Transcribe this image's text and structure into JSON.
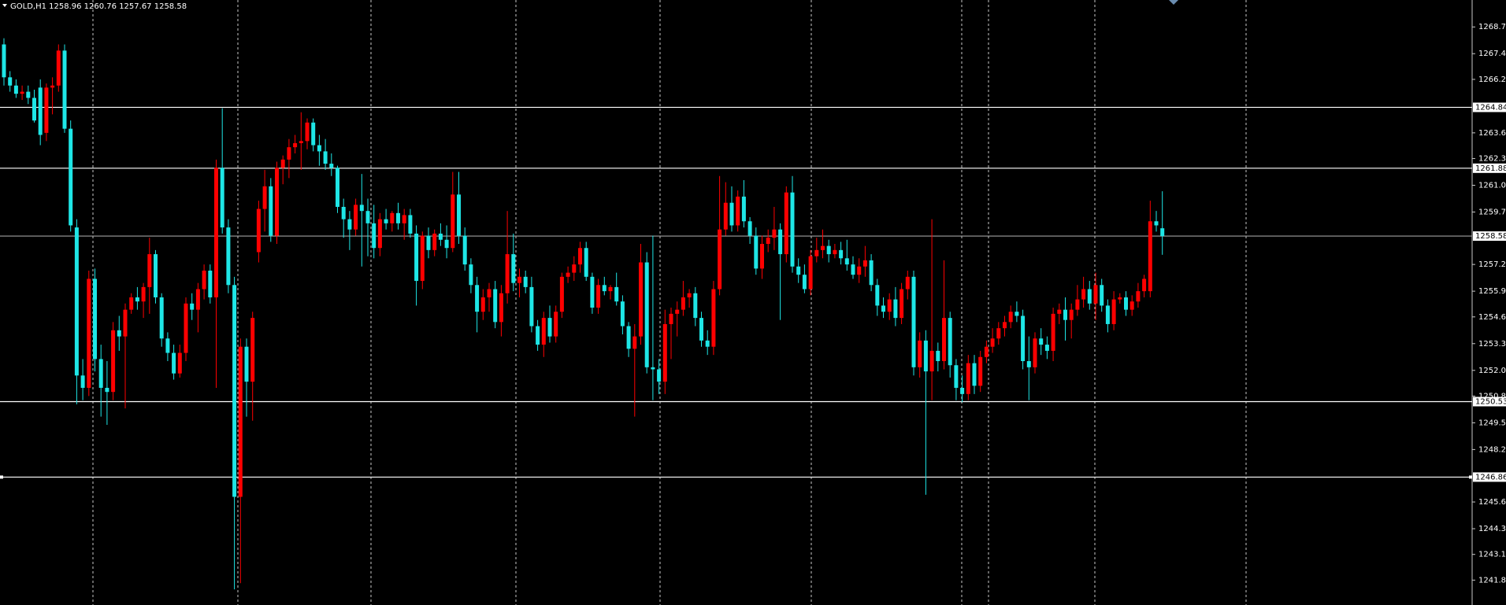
{
  "chart_data": {
    "type": "candlestick",
    "title": "GOLD,H1  1258.96 1260.76 1257.67 1258.58",
    "up_color": "#ff0000",
    "down_color": "#1ee6e6",
    "level_color": "#ffffff",
    "bid_color": "#a0a0a0",
    "ylim": [
      1240.64,
      1270.06
    ],
    "yticks": [
      1268.75,
      1267.45,
      {
        "value": 1266.2,
        "label": "1266.20"
      },
      {
        "value": 1263.6,
        "label": "1263.60"
      },
      1262.35,
      1261.05,
      1259.75,
      {
        "value": 1257.2,
        "label": "1257.20"
      },
      {
        "value": 1255.9,
        "label": "1255.90"
      },
      1254.65,
      1253.35,
      1252.05,
      {
        "value": 1250.8,
        "label": "1250.80"
      },
      {
        "value": 1249.5,
        "label": "1249.50"
      },
      {
        "value": 1248.2,
        "label": "1248.20"
      },
      1245.65,
      1244.35,
      {
        "value": 1243.1,
        "label": "1243.10"
      },
      1241.85
    ],
    "levels": [
      1264.84,
      1261.88,
      1250.53,
      1246.86
    ],
    "bid": 1258.58,
    "candles": [
      [
        1267.9,
        1268.2,
        1265.9,
        1266.3
      ],
      [
        1266.3,
        1266.6,
        1265.6,
        1265.9
      ],
      [
        1265.9,
        1266.2,
        1265.3,
        1265.5
      ],
      [
        1265.5,
        1265.9,
        1265.2,
        1265.6
      ],
      [
        1265.6,
        1265.9,
        1265.0,
        1265.3
      ],
      [
        1265.3,
        1265.7,
        1264.1,
        1264.2
      ],
      [
        1265.8,
        1266.2,
        1263.0,
        1263.5
      ],
      [
        1263.6,
        1266.0,
        1263.2,
        1265.8
      ],
      [
        1265.8,
        1266.3,
        1264.5,
        1265.9
      ],
      [
        1265.9,
        1267.9,
        1265.6,
        1267.6
      ],
      [
        1267.6,
        1267.9,
        1263.6,
        1263.8
      ],
      [
        1263.8,
        1264.2,
        1258.8,
        1259.1
      ],
      [
        1259.0,
        1259.4,
        1250.4,
        1251.8
      ],
      [
        1251.8,
        1252.6,
        1250.6,
        1251.2
      ],
      [
        1251.2,
        1256.9,
        1250.8,
        1256.5
      ],
      [
        1256.5,
        1257.0,
        1252.0,
        1252.6
      ],
      [
        1252.6,
        1253.3,
        1249.8,
        1251.2
      ],
      [
        1251.2,
        1252.5,
        1249.4,
        1251.0
      ],
      [
        1251.0,
        1254.4,
        1250.6,
        1254.0
      ],
      [
        1254.0,
        1254.7,
        1253.0,
        1253.7
      ],
      [
        1253.7,
        1255.3,
        1250.2,
        1255.0
      ],
      [
        1255.0,
        1255.8,
        1254.8,
        1255.6
      ],
      [
        1255.6,
        1256.1,
        1255.0,
        1255.4
      ],
      [
        1255.4,
        1256.3,
        1254.6,
        1256.1
      ],
      [
        1256.1,
        1258.5,
        1254.8,
        1257.7
      ],
      [
        1257.7,
        1257.9,
        1255.3,
        1255.6
      ],
      [
        1255.6,
        1255.8,
        1253.2,
        1253.6
      ],
      [
        1253.6,
        1253.9,
        1252.5,
        1252.9
      ],
      [
        1252.9,
        1253.3,
        1251.6,
        1251.9
      ],
      [
        1251.9,
        1253.3,
        1251.7,
        1252.9
      ],
      [
        1252.9,
        1255.6,
        1252.5,
        1255.3
      ],
      [
        1255.3,
        1255.8,
        1254.5,
        1255.0
      ],
      [
        1255.0,
        1256.3,
        1253.9,
        1256.0
      ],
      [
        1256.0,
        1257.2,
        1255.5,
        1256.9
      ],
      [
        1256.9,
        1257.2,
        1255.3,
        1255.6
      ],
      [
        1255.6,
        1262.3,
        1251.2,
        1261.9
      ],
      [
        1261.9,
        1264.8,
        1258.7,
        1259.0
      ],
      [
        1259.0,
        1259.4,
        1255.8,
        1256.2
      ],
      [
        1256.2,
        1256.6,
        1241.4,
        1245.9
      ],
      [
        1245.9,
        1253.6,
        1241.7,
        1253.2
      ],
      [
        1253.2,
        1253.6,
        1249.8,
        1251.5
      ],
      [
        1251.5,
        1254.9,
        1249.6,
        1254.6
      ],
      [
        1257.8,
        1260.3,
        1257.3,
        1259.9
      ],
      [
        1259.9,
        1261.8,
        1258.8,
        1261.0
      ],
      [
        1261.0,
        1261.4,
        1258.3,
        1258.6
      ],
      [
        1258.6,
        1262.2,
        1258.2,
        1261.9
      ],
      [
        1261.9,
        1262.5,
        1261.1,
        1262.3
      ],
      [
        1262.3,
        1263.3,
        1261.4,
        1262.9
      ],
      [
        1262.9,
        1263.5,
        1262.6,
        1263.1
      ],
      [
        1263.1,
        1264.6,
        1261.8,
        1263.2
      ],
      [
        1263.2,
        1264.3,
        1262.8,
        1264.1
      ],
      [
        1264.1,
        1264.3,
        1262.7,
        1263.0
      ],
      [
        1263.0,
        1263.5,
        1262.0,
        1262.7
      ],
      [
        1262.7,
        1263.3,
        1261.8,
        1262.1
      ],
      [
        1262.1,
        1262.6,
        1261.5,
        1261.9
      ],
      [
        1261.9,
        1262.0,
        1259.7,
        1260.0
      ],
      [
        1260.0,
        1260.4,
        1258.5,
        1259.4
      ],
      [
        1259.4,
        1259.8,
        1257.9,
        1258.9
      ],
      [
        1258.9,
        1260.4,
        1258.6,
        1260.1
      ],
      [
        1260.1,
        1261.6,
        1257.1,
        1259.8
      ],
      [
        1259.8,
        1260.4,
        1257.6,
        1259.2
      ],
      [
        1259.2,
        1260.1,
        1257.5,
        1258.0
      ],
      [
        1258.0,
        1259.7,
        1257.6,
        1259.4
      ],
      [
        1259.4,
        1259.9,
        1258.9,
        1259.2
      ],
      [
        1259.2,
        1259.8,
        1258.8,
        1259.7
      ],
      [
        1259.7,
        1260.2,
        1258.9,
        1259.2
      ],
      [
        1259.2,
        1259.9,
        1258.4,
        1259.6
      ],
      [
        1259.6,
        1259.9,
        1258.5,
        1258.7
      ],
      [
        1258.7,
        1259.1,
        1255.2,
        1256.4
      ],
      [
        1256.4,
        1258.8,
        1256.0,
        1258.6
      ],
      [
        1258.6,
        1259.0,
        1257.5,
        1257.9
      ],
      [
        1257.9,
        1258.9,
        1257.6,
        1258.7
      ],
      [
        1258.7,
        1259.2,
        1258.1,
        1258.4
      ],
      [
        1258.4,
        1259.1,
        1257.5,
        1258.0
      ],
      [
        1258.0,
        1261.7,
        1257.8,
        1260.6
      ],
      [
        1260.6,
        1261.7,
        1258.2,
        1258.6
      ],
      [
        1258.6,
        1259.0,
        1256.9,
        1257.2
      ],
      [
        1257.2,
        1257.5,
        1255.8,
        1256.2
      ],
      [
        1256.2,
        1256.6,
        1253.9,
        1254.9
      ],
      [
        1254.9,
        1256.0,
        1254.5,
        1255.6
      ],
      [
        1255.6,
        1256.3,
        1254.9,
        1256.0
      ],
      [
        1256.0,
        1256.4,
        1254.1,
        1254.4
      ],
      [
        1254.4,
        1256.2,
        1253.7,
        1255.8
      ],
      [
        1255.8,
        1259.8,
        1255.3,
        1257.7
      ],
      [
        1257.7,
        1258.7,
        1255.9,
        1256.3
      ],
      [
        1256.3,
        1257.0,
        1255.6,
        1256.6
      ],
      [
        1256.6,
        1256.9,
        1255.8,
        1256.1
      ],
      [
        1256.1,
        1256.6,
        1253.9,
        1254.2
      ],
      [
        1254.2,
        1254.5,
        1253.0,
        1253.3
      ],
      [
        1253.3,
        1254.9,
        1252.7,
        1254.6
      ],
      [
        1254.6,
        1255.2,
        1253.4,
        1253.7
      ],
      [
        1253.7,
        1255.2,
        1253.4,
        1254.9
      ],
      [
        1254.9,
        1256.8,
        1254.6,
        1256.6
      ],
      [
        1256.6,
        1257.1,
        1256.3,
        1256.8
      ],
      [
        1256.8,
        1257.6,
        1256.4,
        1257.2
      ],
      [
        1257.2,
        1258.3,
        1256.8,
        1258.0
      ],
      [
        1258.0,
        1258.3,
        1256.4,
        1256.6
      ],
      [
        1256.6,
        1256.8,
        1254.8,
        1255.1
      ],
      [
        1255.1,
        1256.5,
        1254.8,
        1256.2
      ],
      [
        1256.2,
        1256.6,
        1255.7,
        1255.9
      ],
      [
        1255.9,
        1256.2,
        1255.5,
        1256.1
      ],
      [
        1256.1,
        1256.8,
        1255.2,
        1255.4
      ],
      [
        1255.4,
        1255.7,
        1253.8,
        1254.2
      ],
      [
        1254.2,
        1254.4,
        1252.7,
        1253.1
      ],
      [
        1253.1,
        1254.3,
        1249.8,
        1253.7
      ],
      [
        1253.7,
        1258.2,
        1253.3,
        1257.3
      ],
      [
        1257.3,
        1257.8,
        1251.9,
        1252.2
      ],
      [
        1252.2,
        1258.6,
        1250.6,
        1252.1
      ],
      [
        1252.1,
        1252.6,
        1250.9,
        1251.5
      ],
      [
        1251.5,
        1255.0,
        1250.9,
        1254.3
      ],
      [
        1254.3,
        1255.1,
        1252.6,
        1254.8
      ],
      [
        1254.8,
        1255.4,
        1253.7,
        1255.0
      ],
      [
        1255.0,
        1256.4,
        1254.7,
        1255.6
      ],
      [
        1255.6,
        1256.0,
        1255.1,
        1255.8
      ],
      [
        1255.8,
        1256.1,
        1254.2,
        1254.6
      ],
      [
        1254.6,
        1254.9,
        1253.2,
        1253.5
      ],
      [
        1253.5,
        1254.0,
        1252.8,
        1253.2
      ],
      [
        1253.2,
        1256.4,
        1252.8,
        1256.0
      ],
      [
        1256.0,
        1261.5,
        1255.7,
        1258.9
      ],
      [
        1258.9,
        1261.2,
        1258.6,
        1260.2
      ],
      [
        1260.2,
        1261.0,
        1258.8,
        1259.1
      ],
      [
        1259.1,
        1260.8,
        1258.8,
        1260.5
      ],
      [
        1260.5,
        1261.3,
        1259.0,
        1259.3
      ],
      [
        1259.3,
        1259.5,
        1258.2,
        1258.6
      ],
      [
        1258.6,
        1259.0,
        1256.7,
        1257.0
      ],
      [
        1257.0,
        1258.6,
        1256.5,
        1258.2
      ],
      [
        1258.2,
        1258.9,
        1257.8,
        1258.5
      ],
      [
        1258.5,
        1260.0,
        1257.9,
        1258.9
      ],
      [
        1258.9,
        1259.2,
        1254.5,
        1257.7
      ],
      [
        1257.7,
        1261.0,
        1257.3,
        1260.7
      ],
      [
        1260.7,
        1261.5,
        1256.8,
        1257.1
      ],
      [
        1257.1,
        1257.5,
        1256.3,
        1256.7
      ],
      [
        1256.7,
        1257.2,
        1255.8,
        1256.0
      ],
      [
        1256.0,
        1257.9,
        1255.7,
        1257.6
      ],
      [
        1257.6,
        1258.5,
        1257.3,
        1257.9
      ],
      [
        1257.9,
        1258.9,
        1257.5,
        1258.1
      ],
      [
        1258.1,
        1258.4,
        1257.3,
        1257.7
      ],
      [
        1257.7,
        1258.2,
        1257.5,
        1257.9
      ],
      [
        1257.9,
        1258.3,
        1257.2,
        1257.5
      ],
      [
        1257.5,
        1258.4,
        1256.9,
        1257.2
      ],
      [
        1257.2,
        1257.6,
        1256.5,
        1256.7
      ],
      [
        1256.7,
        1257.5,
        1256.3,
        1257.1
      ],
      [
        1257.1,
        1258.1,
        1256.6,
        1257.4
      ],
      [
        1257.4,
        1257.7,
        1255.9,
        1256.2
      ],
      [
        1256.2,
        1256.5,
        1254.7,
        1255.2
      ],
      [
        1255.2,
        1255.6,
        1254.6,
        1254.9
      ],
      [
        1254.9,
        1255.8,
        1254.5,
        1255.5
      ],
      [
        1255.5,
        1256.1,
        1254.2,
        1254.6
      ],
      [
        1254.6,
        1256.3,
        1254.3,
        1256.0
      ],
      [
        1256.0,
        1256.9,
        1255.5,
        1256.6
      ],
      [
        1256.6,
        1256.9,
        1251.8,
        1252.2
      ],
      [
        1252.2,
        1253.9,
        1251.7,
        1253.5
      ],
      [
        1253.5,
        1254.0,
        1246.0,
        1252.0
      ],
      [
        1252.0,
        1259.4,
        1250.6,
        1253.0
      ],
      [
        1253.0,
        1253.4,
        1252.0,
        1252.5
      ],
      [
        1252.5,
        1257.4,
        1252.1,
        1254.6
      ],
      [
        1254.6,
        1254.9,
        1251.7,
        1252.3
      ],
      [
        1252.3,
        1252.6,
        1250.6,
        1251.2
      ],
      [
        1251.2,
        1251.8,
        1250.5,
        1250.9
      ],
      [
        1250.9,
        1252.8,
        1250.6,
        1252.4
      ],
      [
        1252.4,
        1252.8,
        1250.9,
        1251.3
      ],
      [
        1251.3,
        1253.0,
        1251.0,
        1252.7
      ],
      [
        1252.7,
        1253.5,
        1252.4,
        1253.2
      ],
      [
        1253.2,
        1254.1,
        1252.9,
        1253.6
      ],
      [
        1253.6,
        1254.4,
        1253.3,
        1254.1
      ],
      [
        1254.1,
        1254.7,
        1253.7,
        1254.4
      ],
      [
        1254.4,
        1255.2,
        1254.1,
        1254.9
      ],
      [
        1254.9,
        1255.4,
        1254.4,
        1254.7
      ],
      [
        1254.7,
        1255.0,
        1252.1,
        1252.5
      ],
      [
        1252.5,
        1253.7,
        1250.6,
        1252.2
      ],
      [
        1252.2,
        1253.9,
        1251.9,
        1253.6
      ],
      [
        1253.6,
        1254.1,
        1252.8,
        1253.3
      ],
      [
        1253.3,
        1253.7,
        1252.6,
        1253.0
      ],
      [
        1253.0,
        1255.1,
        1252.5,
        1254.8
      ],
      [
        1254.8,
        1255.3,
        1254.3,
        1255.0
      ],
      [
        1255.0,
        1255.6,
        1253.5,
        1254.5
      ],
      [
        1254.5,
        1255.3,
        1253.6,
        1255.0
      ],
      [
        1255.0,
        1256.2,
        1254.7,
        1255.5
      ],
      [
        1255.5,
        1256.6,
        1255.1,
        1256.0
      ],
      [
        1256.0,
        1256.4,
        1255.0,
        1255.3
      ],
      [
        1255.3,
        1256.8,
        1254.5,
        1256.2
      ],
      [
        1256.2,
        1256.5,
        1254.9,
        1255.2
      ],
      [
        1255.2,
        1255.5,
        1253.9,
        1254.3
      ],
      [
        1254.3,
        1255.9,
        1254.0,
        1255.5
      ],
      [
        1255.5,
        1255.8,
        1255.3,
        1255.6
      ],
      [
        1255.6,
        1255.9,
        1254.7,
        1255.0
      ],
      [
        1255.0,
        1255.7,
        1254.7,
        1255.4
      ],
      [
        1255.4,
        1256.3,
        1255.1,
        1255.9
      ],
      [
        1255.9,
        1256.7,
        1255.6,
        1256.5
      ],
      [
        1255.9,
        1260.3,
        1255.6,
        1259.3
      ],
      [
        1259.3,
        1259.8,
        1258.8,
        1259.1
      ],
      [
        1258.96,
        1260.76,
        1257.67,
        1258.58
      ]
    ]
  }
}
